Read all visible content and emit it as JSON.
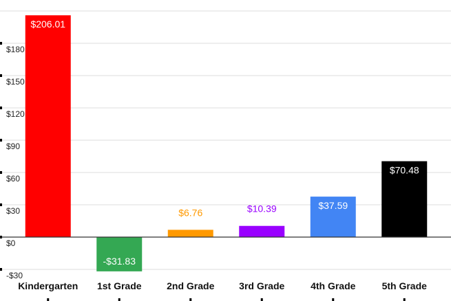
{
  "chart_data": {
    "type": "bar",
    "categories": [
      "Kindergarten",
      "1st Grade",
      "2nd Grade",
      "3rd Grade",
      "4th Grade",
      "5th Grade"
    ],
    "values": [
      206.01,
      -31.83,
      6.76,
      10.39,
      37.59,
      70.48
    ],
    "data_labels": [
      "$206.01",
      "-$31.83",
      "$6.76",
      "$10.39",
      "$37.59",
      "$70.48"
    ],
    "colors": [
      "#ff0000",
      "#34a853",
      "#ff9900",
      "#9900ff",
      "#4285f4",
      "#000000"
    ],
    "data_label_colors": [
      "#ffffff",
      "#ffffff",
      "#ff9900",
      "#9900ff",
      "#ffffff",
      "#ffffff"
    ],
    "data_label_inside": [
      true,
      true,
      false,
      false,
      true,
      true
    ],
    "y_ticks": [
      -30,
      0,
      30,
      60,
      90,
      120,
      150,
      180
    ],
    "y_tick_labels": [
      "-$30",
      "$0",
      "$30",
      "$60",
      "$90",
      "$120",
      "$150",
      "$180"
    ],
    "ylim": [
      -30,
      210
    ],
    "grid": true,
    "title": "",
    "xlabel": "",
    "ylabel": ""
  }
}
